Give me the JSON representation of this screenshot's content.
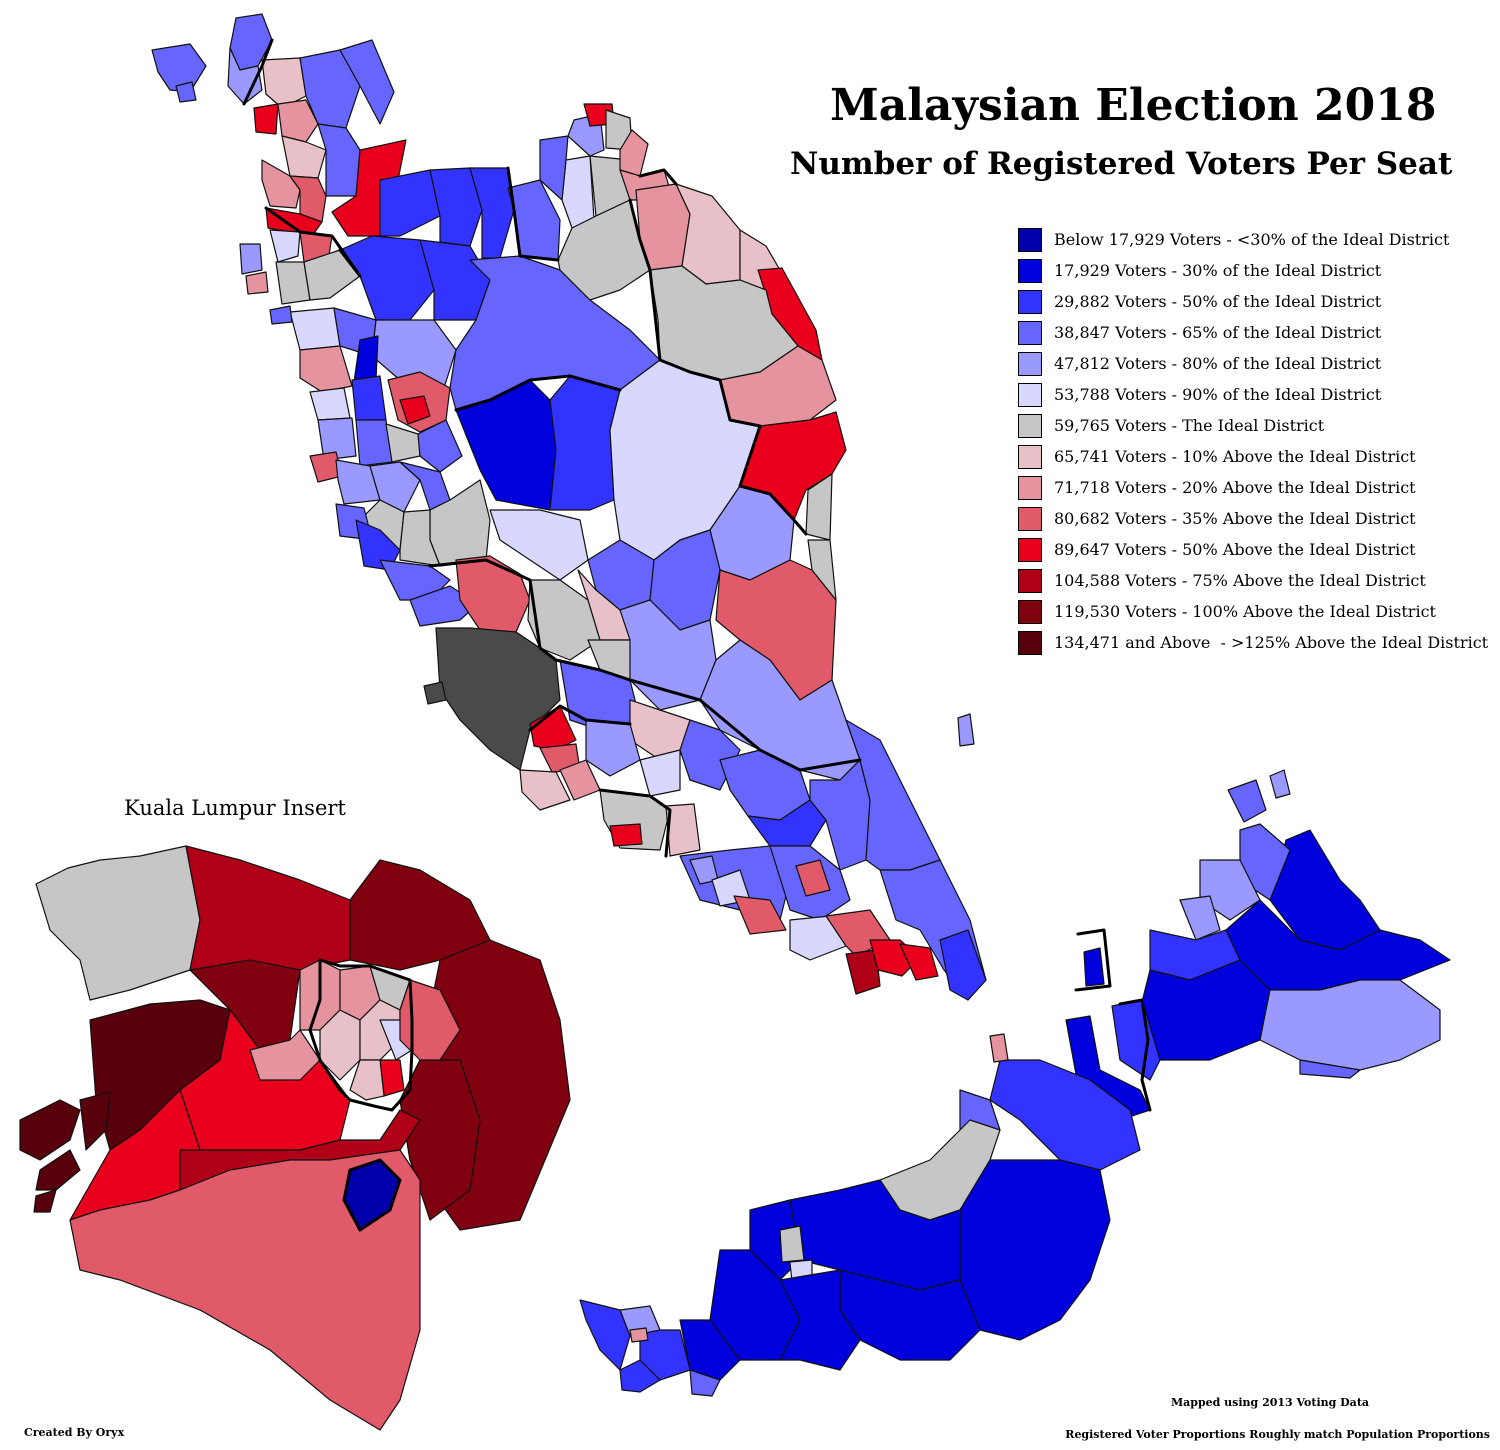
{
  "title": "Malaysian Election 2018",
  "subtitle": "Number of Registered Voters Per Seat",
  "legend": [
    {
      "label": "Below 17,929 Voters - <30% of the Ideal District",
      "color": "#0000aa"
    },
    {
      "label": "17,929 Voters - 30% of the Ideal District",
      "color": "#0000dd"
    },
    {
      "label": "29,882 Voters - 50% of the Ideal District",
      "color": "#3333ff"
    },
    {
      "label": "38,847 Voters - 65% of the Ideal District",
      "color": "#6666ff"
    },
    {
      "label": "47,812 Voters - 80% of the Ideal District",
      "color": "#9999ff"
    },
    {
      "label": "53,788 Voters - 90% of the Ideal District",
      "color": "#d8d8ff"
    },
    {
      "label": "59,765 Voters - The Ideal District",
      "color": "#c6c6c6"
    },
    {
      "label": "65,741 Voters - 10% Above the Ideal District",
      "color": "#e8c0c8"
    },
    {
      "label": "71,718 Voters - 20% Above the Ideal District",
      "color": "#e5939e"
    },
    {
      "label": "80,682 Voters - 35% Above the Ideal District",
      "color": "#e05a6a"
    },
    {
      "label": "89,647 Voters - 50% Above the Ideal District",
      "color": "#e8001c"
    },
    {
      "label": "104,588 Voters - 75% Above the Ideal District",
      "color": "#b00018"
    },
    {
      "label": "119,530 Voters - 100% Above the Ideal District",
      "color": "#800010"
    },
    {
      "label": "134,471 and Above  - >125% Above the Ideal District",
      "color": "#58000c"
    }
  ],
  "insert_title": "Kuala Lumpur Insert",
  "credit": "Created By Oryx",
  "note_data": "Mapped using 2013 Voting Data",
  "note_proportions": "Registered Voter Proportions Roughly match Population Proportions",
  "colors": {
    "background": "#ffffff",
    "border": "#000000",
    "dark_gray": "#4a4a4a"
  }
}
